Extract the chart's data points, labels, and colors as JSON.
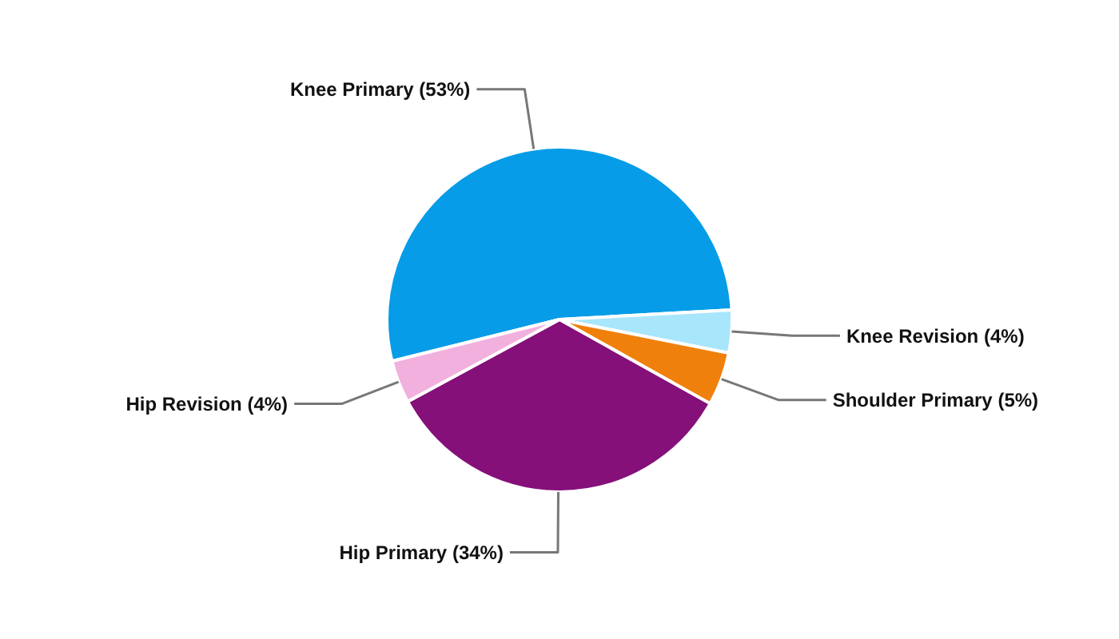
{
  "chart_data": {
    "type": "pie",
    "categories": [
      "Knee Primary",
      "Knee Revision",
      "Shoulder Primary",
      "Hip Primary",
      "Hip Revision"
    ],
    "values": [
      53,
      4,
      5,
      34,
      4
    ],
    "colors": [
      "#069ce8",
      "#a8e6fc",
      "#f0800c",
      "#85107a",
      "#f2b0de"
    ],
    "value_labels": [
      "(53%)",
      "(4%)",
      "(5%)",
      "(34%)",
      "(4%)"
    ],
    "legend": false
  }
}
